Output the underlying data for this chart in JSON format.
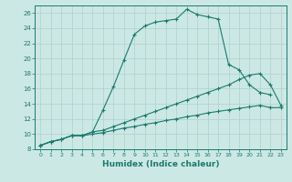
{
  "xlabel": "Humidex (Indice chaleur)",
  "bg_color": "#cce8e5",
  "line_color": "#1a7a6e",
  "grid_color": "#aed0cc",
  "xlim": [
    -0.5,
    23.5
  ],
  "ylim": [
    8,
    27
  ],
  "xticks": [
    0,
    1,
    2,
    3,
    4,
    5,
    6,
    7,
    8,
    9,
    10,
    11,
    12,
    13,
    14,
    15,
    16,
    17,
    18,
    19,
    20,
    21,
    22,
    23
  ],
  "yticks": [
    8,
    10,
    12,
    14,
    16,
    18,
    20,
    22,
    24,
    26
  ],
  "line1_x": [
    0,
    1,
    2,
    3,
    4,
    5,
    6,
    7,
    8,
    9,
    10,
    11,
    12,
    13,
    14,
    15,
    16,
    17,
    18,
    19,
    20,
    21,
    22
  ],
  "line1_y": [
    8.5,
    9.0,
    9.3,
    9.8,
    9.8,
    10.3,
    13.2,
    16.3,
    19.8,
    23.2,
    24.3,
    24.8,
    25.0,
    25.2,
    26.5,
    25.8,
    25.5,
    25.2,
    19.2,
    18.5,
    16.5,
    15.5,
    15.2
  ],
  "line2_x": [
    0,
    1,
    2,
    3,
    4,
    5,
    6,
    7,
    8,
    9,
    10,
    11,
    12,
    13,
    14,
    15,
    16,
    17,
    18,
    19,
    20,
    21,
    22,
    23
  ],
  "line2_y": [
    8.5,
    9.0,
    9.3,
    9.8,
    9.8,
    10.3,
    10.5,
    11.0,
    11.5,
    12.0,
    12.5,
    13.0,
    13.5,
    14.0,
    14.5,
    15.0,
    15.5,
    16.0,
    16.5,
    17.2,
    17.8,
    18.0,
    16.5,
    13.8
  ],
  "line3_x": [
    0,
    1,
    2,
    3,
    4,
    5,
    6,
    7,
    8,
    9,
    10,
    11,
    12,
    13,
    14,
    15,
    16,
    17,
    18,
    19,
    20,
    21,
    22,
    23
  ],
  "line3_y": [
    8.5,
    9.0,
    9.3,
    9.8,
    9.8,
    10.0,
    10.2,
    10.5,
    10.8,
    11.0,
    11.3,
    11.5,
    11.8,
    12.0,
    12.3,
    12.5,
    12.8,
    13.0,
    13.2,
    13.4,
    13.6,
    13.8,
    13.5,
    13.5
  ]
}
